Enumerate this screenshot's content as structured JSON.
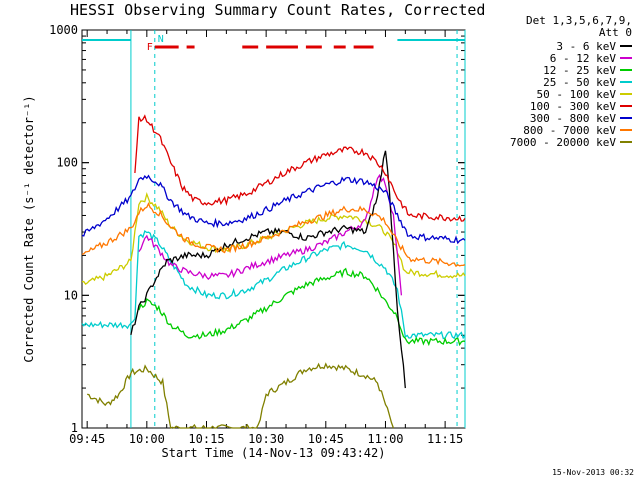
{
  "chart_data": {
    "type": "line",
    "title": "HESSI Observing Summary Count Rates, Corrected",
    "xlabel": "Start Time (14-Nov-13 09:43:42)",
    "ylabel": "Corrected Count Rate (s⁻¹ detector⁻¹)",
    "x_ticks": [
      "09:45",
      "10:00",
      "10:15",
      "10:30",
      "10:45",
      "11:00",
      "11:15"
    ],
    "y_ticks": [
      "1",
      "10",
      "100",
      "1000"
    ],
    "y_scale": "log",
    "ylim": [
      1,
      1000
    ],
    "xlim": [
      "09:43:42",
      "11:20:00"
    ],
    "legend_title": [
      "Det 1,3,5,6,7,9,",
      "Att 0"
    ],
    "legend_position": "right",
    "flags": {
      "F": "F",
      "N": "N"
    },
    "timestamp": "15-Nov-2013 00:32",
    "series": [
      {
        "name": "3 - 6 keV",
        "color": "#000000",
        "points": [
          [
            "09:56",
            5
          ],
          [
            "09:58",
            8
          ],
          [
            "10:00",
            10
          ],
          [
            "10:02",
            13
          ],
          [
            "10:05",
            18
          ],
          [
            "10:10",
            20
          ],
          [
            "10:15",
            20
          ],
          [
            "10:20",
            24
          ],
          [
            "10:25",
            27
          ],
          [
            "10:30",
            30
          ],
          [
            "10:35",
            30
          ],
          [
            "10:40",
            27
          ],
          [
            "10:45",
            30
          ],
          [
            "10:50",
            32
          ],
          [
            "10:55",
            30
          ],
          [
            "10:58",
            55
          ],
          [
            "11:00",
            130
          ],
          [
            "11:01",
            60
          ],
          [
            "11:03",
            8
          ],
          [
            "11:05",
            2
          ]
        ]
      },
      {
        "name": "6 - 12 keV",
        "color": "#cc00cc",
        "points": [
          [
            "09:58",
            22
          ],
          [
            "10:00",
            28
          ],
          [
            "10:03",
            22
          ],
          [
            "10:06",
            17
          ],
          [
            "10:10",
            15
          ],
          [
            "10:15",
            14
          ],
          [
            "10:20",
            14
          ],
          [
            "10:25",
            16
          ],
          [
            "10:30",
            18
          ],
          [
            "10:35",
            20
          ],
          [
            "10:40",
            22
          ],
          [
            "10:45",
            25
          ],
          [
            "10:50",
            30
          ],
          [
            "10:55",
            36
          ],
          [
            "10:58",
            80
          ],
          [
            "11:00",
            70
          ],
          [
            "11:02",
            40
          ],
          [
            "11:04",
            10
          ]
        ]
      },
      {
        "name": "12 - 25 keV",
        "color": "#00cc00",
        "points": [
          [
            "09:58",
            8
          ],
          [
            "10:00",
            9
          ],
          [
            "10:03",
            8
          ],
          [
            "10:06",
            6
          ],
          [
            "10:10",
            5
          ],
          [
            "10:15",
            5
          ],
          [
            "10:20",
            5.5
          ],
          [
            "10:25",
            6.5
          ],
          [
            "10:30",
            8
          ],
          [
            "10:35",
            10
          ],
          [
            "10:40",
            12
          ],
          [
            "10:45",
            13.5
          ],
          [
            "10:50",
            15
          ],
          [
            "10:55",
            14
          ],
          [
            "10:58",
            11
          ],
          [
            "11:00",
            9
          ],
          [
            "11:03",
            7
          ],
          [
            "11:05",
            4.5
          ],
          [
            "11:20",
            4.5
          ]
        ]
      },
      {
        "name": "25 - 50 keV",
        "color": "#00cccc",
        "points": [
          [
            "09:43:42",
            6
          ],
          [
            "09:53",
            6
          ],
          [
            "09:56",
            6
          ],
          [
            "09:57",
            7
          ],
          [
            "09:58",
            28
          ],
          [
            "10:00",
            30
          ],
          [
            "10:03",
            25
          ],
          [
            "10:06",
            18
          ],
          [
            "10:10",
            12
          ],
          [
            "10:15",
            10
          ],
          [
            "10:20",
            10
          ],
          [
            "10:25",
            11
          ],
          [
            "10:30",
            13
          ],
          [
            "10:35",
            16
          ],
          [
            "10:40",
            19
          ],
          [
            "10:45",
            22
          ],
          [
            "10:50",
            24
          ],
          [
            "10:55",
            22
          ],
          [
            "10:58",
            18
          ],
          [
            "11:00",
            16
          ],
          [
            "11:03",
            11
          ],
          [
            "11:05",
            5
          ],
          [
            "11:20",
            5
          ]
        ]
      },
      {
        "name": "50 - 100 keV",
        "color": "#cccc00",
        "points": [
          [
            "09:43:42",
            12
          ],
          [
            "09:50",
            14
          ],
          [
            "09:56",
            18
          ],
          [
            "09:58",
            50
          ],
          [
            "10:00",
            55
          ],
          [
            "10:03",
            45
          ],
          [
            "10:06",
            33
          ],
          [
            "10:10",
            26
          ],
          [
            "10:15",
            23
          ],
          [
            "10:20",
            22
          ],
          [
            "10:25",
            24
          ],
          [
            "10:30",
            27
          ],
          [
            "10:35",
            31
          ],
          [
            "10:40",
            35
          ],
          [
            "10:45",
            38
          ],
          [
            "10:50",
            40
          ],
          [
            "10:55",
            37
          ],
          [
            "10:58",
            33
          ],
          [
            "11:00",
            30
          ],
          [
            "11:03",
            22
          ],
          [
            "11:05",
            15
          ],
          [
            "11:20",
            14
          ]
        ]
      },
      {
        "name": "100 - 300 keV",
        "color": "#dd0000",
        "points": [
          [
            "09:57",
            80
          ],
          [
            "09:58",
            220
          ],
          [
            "10:00",
            210
          ],
          [
            "10:03",
            160
          ],
          [
            "10:06",
            100
          ],
          [
            "10:09",
            65
          ],
          [
            "10:12",
            52
          ],
          [
            "10:15",
            50
          ],
          [
            "10:20",
            52
          ],
          [
            "10:25",
            58
          ],
          [
            "10:30",
            70
          ],
          [
            "10:35",
            85
          ],
          [
            "10:40",
            100
          ],
          [
            "10:45",
            115
          ],
          [
            "10:50",
            125
          ],
          [
            "10:55",
            120
          ],
          [
            "10:58",
            100
          ],
          [
            "11:00",
            85
          ],
          [
            "11:03",
            55
          ],
          [
            "11:06",
            40
          ],
          [
            "11:20",
            38
          ]
        ]
      },
      {
        "name": "300 - 800 keV",
        "color": "#0000cc",
        "points": [
          [
            "09:43:42",
            28
          ],
          [
            "09:50",
            38
          ],
          [
            "09:56",
            55
          ],
          [
            "09:58",
            75
          ],
          [
            "10:00",
            80
          ],
          [
            "10:03",
            70
          ],
          [
            "10:06",
            52
          ],
          [
            "10:10",
            40
          ],
          [
            "10:15",
            35
          ],
          [
            "10:20",
            35
          ],
          [
            "10:25",
            38
          ],
          [
            "10:30",
            44
          ],
          [
            "10:35",
            52
          ],
          [
            "10:40",
            60
          ],
          [
            "10:45",
            68
          ],
          [
            "10:50",
            75
          ],
          [
            "10:55",
            72
          ],
          [
            "10:58",
            65
          ],
          [
            "11:00",
            60
          ],
          [
            "11:03",
            40
          ],
          [
            "11:06",
            28
          ],
          [
            "11:20",
            26
          ]
        ]
      },
      {
        "name": "800 - 7000 keV",
        "color": "#ff7700",
        "points": [
          [
            "09:43:42",
            20
          ],
          [
            "09:50",
            25
          ],
          [
            "09:56",
            32
          ],
          [
            "09:58",
            42
          ],
          [
            "10:00",
            48
          ],
          [
            "10:03",
            42
          ],
          [
            "10:06",
            33
          ],
          [
            "10:10",
            26
          ],
          [
            "10:15",
            23
          ],
          [
            "10:20",
            22
          ],
          [
            "10:25",
            24
          ],
          [
            "10:30",
            27
          ],
          [
            "10:35",
            31
          ],
          [
            "10:40",
            36
          ],
          [
            "10:45",
            40
          ],
          [
            "10:50",
            45
          ],
          [
            "10:55",
            44
          ],
          [
            "10:58",
            40
          ],
          [
            "11:00",
            36
          ],
          [
            "11:03",
            25
          ],
          [
            "11:06",
            19
          ],
          [
            "11:20",
            17
          ]
        ]
      },
      {
        "name": "7000 - 20000 keV",
        "color": "#808000",
        "points": [
          [
            "09:45",
            1.8
          ],
          [
            "09:50",
            1.5
          ],
          [
            "09:53",
            1.8
          ],
          [
            "09:56",
            2.6
          ],
          [
            "10:00",
            2.8
          ],
          [
            "10:04",
            2.2
          ],
          [
            "10:06",
            1
          ],
          [
            "10:28",
            1
          ],
          [
            "10:30",
            1.8
          ],
          [
            "10:35",
            2.2
          ],
          [
            "10:40",
            2.8
          ],
          [
            "10:45",
            3
          ],
          [
            "10:50",
            2.8
          ],
          [
            "10:55",
            2.5
          ],
          [
            "10:58",
            2.2
          ],
          [
            "11:00",
            1.5
          ],
          [
            "11:02",
            1
          ]
        ]
      }
    ],
    "saa_markers": {
      "flare_flag_intervals": [
        [
          "10:02",
          "10:08"
        ],
        [
          "10:10",
          "10:12"
        ],
        [
          "10:24",
          "10:28"
        ],
        [
          "10:30",
          "10:38"
        ],
        [
          "10:40",
          "10:44"
        ],
        [
          "10:47",
          "10:50"
        ],
        [
          "10:52",
          "10:57"
        ]
      ],
      "night_intervals": [
        [
          "09:43:42",
          "09:56"
        ],
        [
          "11:03",
          "11:20"
        ]
      ]
    }
  }
}
